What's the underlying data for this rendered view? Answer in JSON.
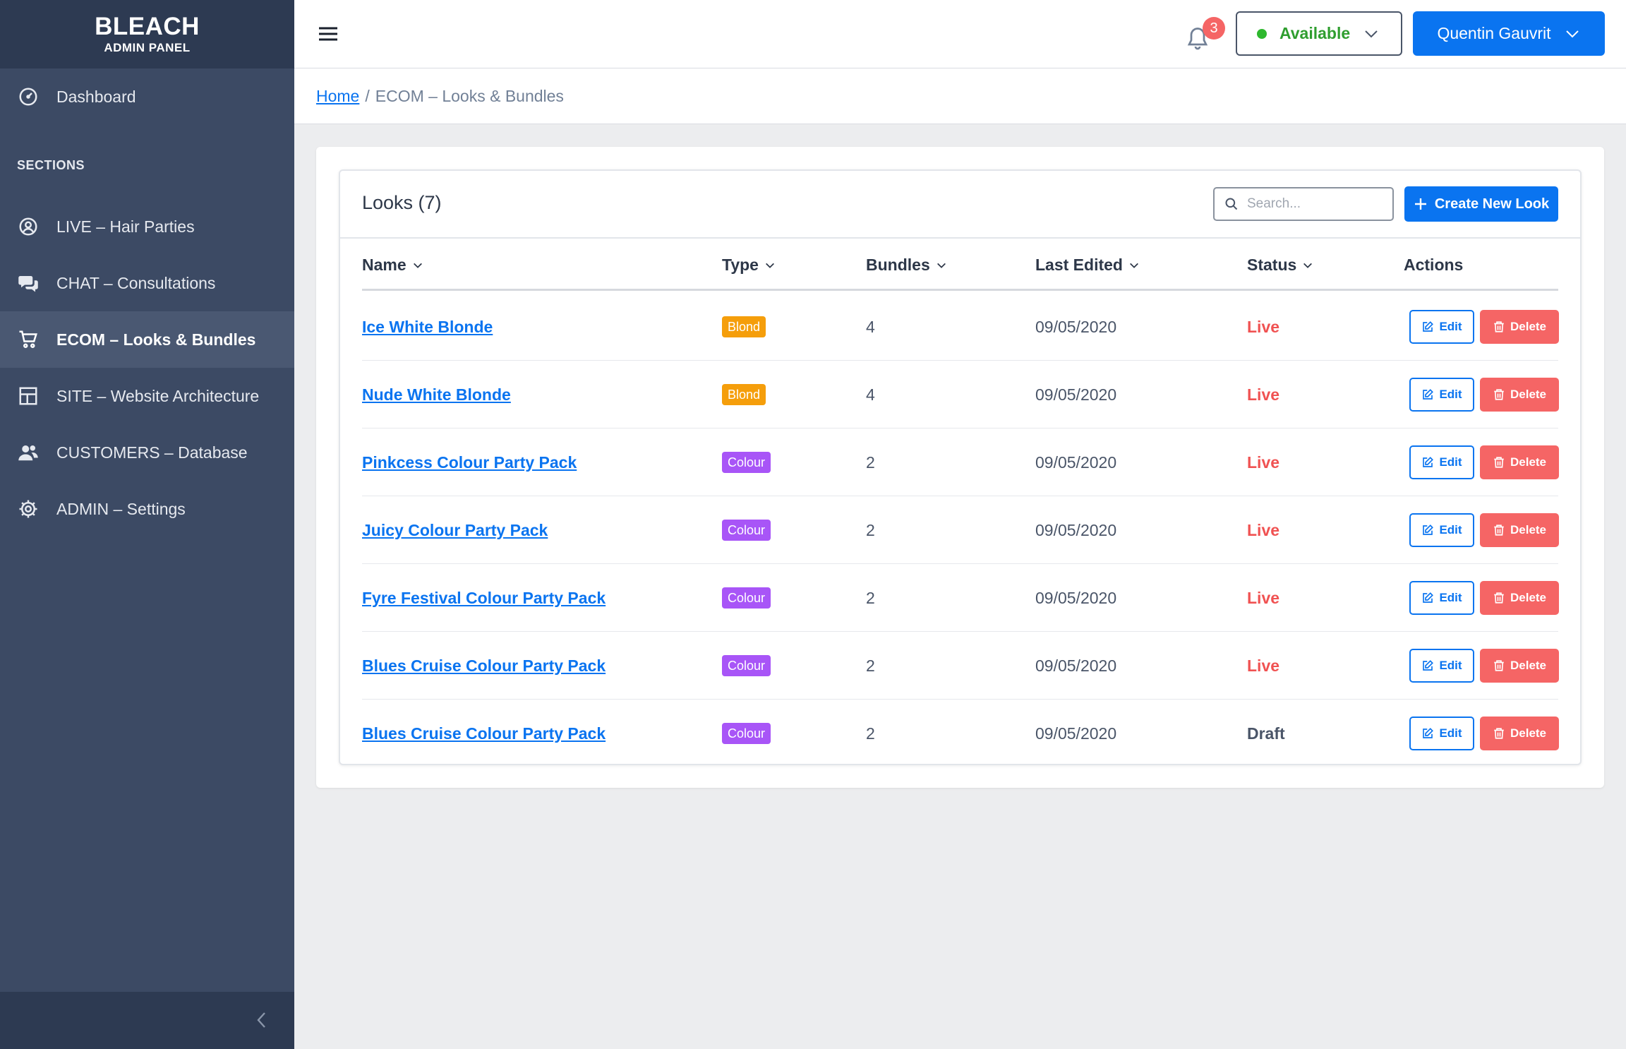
{
  "brand": {
    "title": "BLEACH",
    "subtitle": "ADMIN PANEL"
  },
  "sidebar": {
    "dashboard": {
      "label": "Dashboard",
      "icon": "dashboard-gauge-icon"
    },
    "section_label": "SECTIONS",
    "items": [
      {
        "label": "LIVE – Hair Parties",
        "icon": "user-circle-icon",
        "active": false
      },
      {
        "label": "CHAT – Consultations",
        "icon": "chat-bubbles-icon",
        "active": false
      },
      {
        "label": "ECOM – Looks & Bundles",
        "icon": "cart-icon",
        "active": true
      },
      {
        "label": "SITE – Website Architecture",
        "icon": "layout-grid-icon",
        "active": false
      },
      {
        "label": "CUSTOMERS – Database",
        "icon": "users-icon",
        "active": false
      },
      {
        "label": "ADMIN – Settings",
        "icon": "gear-icon",
        "active": false
      }
    ]
  },
  "topbar": {
    "notification_count": "3",
    "availability": "Available",
    "user_name": "Quentin Gauvrit"
  },
  "breadcrumb": {
    "home": "Home",
    "separator": "/",
    "current": "ECOM – Looks & Bundles"
  },
  "looks": {
    "title": "Looks (7)",
    "search_placeholder": "Search...",
    "create_label": "Create New Look",
    "columns": [
      "Name",
      "Type",
      "Bundles",
      "Last Edited",
      "Status",
      "Actions"
    ],
    "edit_label": "Edit",
    "delete_label": "Delete",
    "rows": [
      {
        "name": "Ice White Blonde",
        "type": "Blond",
        "bundles": "4",
        "last_edited": "09/05/2020",
        "status": "Live"
      },
      {
        "name": "Nude White Blonde",
        "type": "Blond",
        "bundles": "4",
        "last_edited": "09/05/2020",
        "status": "Live"
      },
      {
        "name": "Pinkcess Colour Party Pack",
        "type": "Colour",
        "bundles": "2",
        "last_edited": "09/05/2020",
        "status": "Live"
      },
      {
        "name": "Juicy Colour Party Pack",
        "type": "Colour",
        "bundles": "2",
        "last_edited": "09/05/2020",
        "status": "Live"
      },
      {
        "name": "Fyre Festival Colour Party Pack",
        "type": "Colour",
        "bundles": "2",
        "last_edited": "09/05/2020",
        "status": "Live"
      },
      {
        "name": "Blues Cruise Colour Party Pack",
        "type": "Colour",
        "bundles": "2",
        "last_edited": "09/05/2020",
        "status": "Live"
      },
      {
        "name": "Blues Cruise Colour Party Pack",
        "type": "Colour",
        "bundles": "2",
        "last_edited": "09/05/2020",
        "status": "Draft"
      }
    ]
  },
  "colors": {
    "accent": "#0a74f0",
    "sidebar": "#3c4a64",
    "danger": "#f56565",
    "blond_badge": "#f59e0b",
    "colour_badge": "#a855f7",
    "available": "#2eb82e"
  }
}
